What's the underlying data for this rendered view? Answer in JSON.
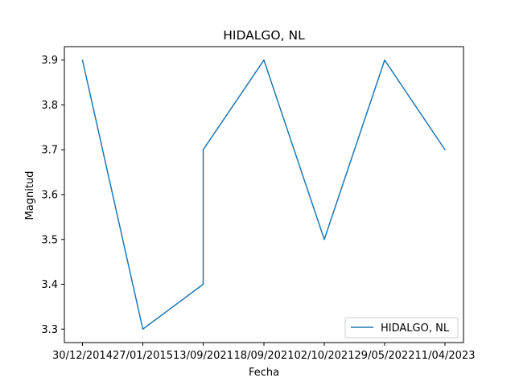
{
  "chart_data": {
    "type": "line",
    "title": "HIDALGO, NL",
    "xlabel": "Fecha",
    "ylabel": "Magnitud",
    "categories": [
      "30/12/2014",
      "27/01/2015",
      "13/09/2021",
      "13/09/2021",
      "18/09/2021",
      "02/10/2021",
      "29/05/2022",
      "11/04/2023"
    ],
    "xticks": [
      "30/12/2014",
      "27/01/2015",
      "13/09/2021",
      "18/09/2021",
      "02/10/2021",
      "29/05/2022",
      "11/04/2023"
    ],
    "series": [
      {
        "name": "HIDALGO, NL",
        "color": "#1f77b4",
        "values": [
          3.9,
          3.3,
          3.4,
          3.7,
          3.9,
          3.5,
          3.9,
          3.7
        ]
      }
    ],
    "yticks": [
      "3.3",
      "3.4",
      "3.5",
      "3.6",
      "3.7",
      "3.8",
      "3.9"
    ],
    "ylim": [
      3.27,
      3.93
    ],
    "grid": false,
    "legend_position": "lower-right"
  }
}
